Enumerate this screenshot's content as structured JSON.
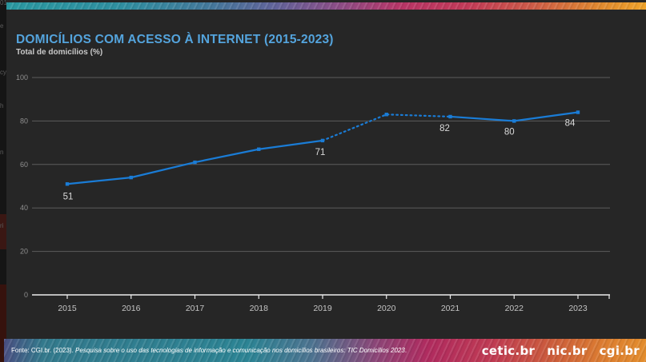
{
  "slide": {
    "title": "DOMICÍLIOS COM ACESSO À INTERNET (2015-2023)",
    "subtitle": "Total de domicílios (%)",
    "title_color": "#54a4dd",
    "background": "#262626"
  },
  "chart_data": {
    "type": "line",
    "title": "DOMICÍLIOS COM ACESSO À INTERNET (2015-2023)",
    "ylabel": "Total de domicílios (%)",
    "categories": [
      "2015",
      "2016",
      "2017",
      "2018",
      "2019",
      "2020",
      "2021",
      "2022",
      "2023"
    ],
    "values": [
      51,
      54,
      61,
      67,
      71,
      83,
      82,
      80,
      84
    ],
    "point_labels": [
      "51",
      "",
      "",
      "",
      "71",
      "",
      "82",
      "80",
      "84"
    ],
    "segments": [
      {
        "from": "2015",
        "to": "2019",
        "style": "solid"
      },
      {
        "from": "2019",
        "to": "2021",
        "style": "dotted"
      },
      {
        "from": "2021",
        "to": "2023",
        "style": "solid"
      }
    ],
    "ylim": [
      0,
      100
    ],
    "yticks": [
      0,
      20,
      40,
      60,
      80,
      100
    ],
    "grid": true,
    "legend": false,
    "colors": {
      "line": "#1a7cd6",
      "grid": "#5c5c5c",
      "axis": "#ececec",
      "point_label": "#d9d9d9",
      "ytick_label": "#8f8f8f",
      "xtick_label": "#c4c4c4"
    }
  },
  "footer": {
    "source_prefix": "Fonte: CGI.br. (2023). ",
    "source_italic": "Pesquisa sobre o uso das tecnologias de informação e comunicação nos domicílios brasileiros: TIC Domicílios 2023",
    "source_suffix": ".",
    "logos": [
      "cetic.br",
      "nic.br",
      "cgi.br"
    ]
  },
  "background_window": {
    "fragments": [
      "019)",
      "e",
      "cy)",
      "h",
      "n",
      "ri"
    ]
  }
}
